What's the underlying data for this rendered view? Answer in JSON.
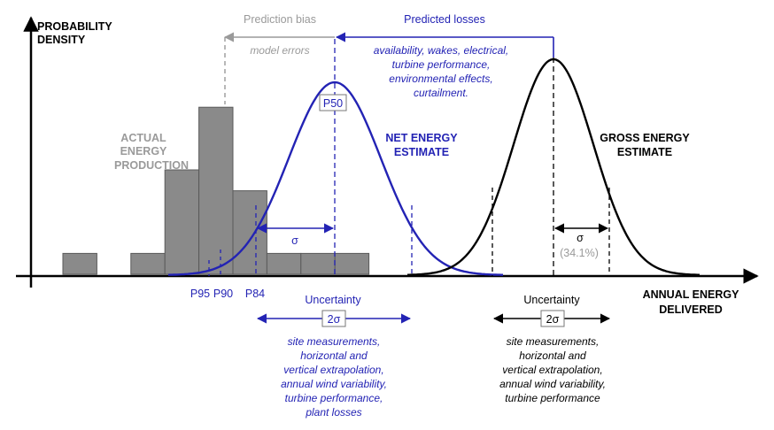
{
  "axes": {
    "y_label": [
      "PROBABILITY",
      "DENSITY"
    ],
    "x_label": [
      "ANNUAL ENERGY",
      "DELIVERED"
    ]
  },
  "histogram": {
    "label": [
      "ACTUAL",
      "ENERGY",
      "PRODUCTION"
    ],
    "bars": [
      1,
      0,
      1,
      5,
      8,
      4,
      1,
      1,
      1
    ]
  },
  "net": {
    "label": [
      "NET ENERGY",
      "ESTIMATE"
    ],
    "p50": "P50",
    "sigma": "σ",
    "p_marks": [
      "P95",
      "P90",
      "P84"
    ],
    "uncertainty_label": "Uncertainty",
    "two_sigma": "2σ",
    "uncertainty_sources": [
      "site measurements,",
      "horizontal and",
      "vertical extrapolation,",
      "annual wind variability,",
      "turbine performance,",
      "plant losses"
    ]
  },
  "gross": {
    "label": [
      "GROSS ENERGY",
      "ESTIMATE"
    ],
    "sigma": "σ",
    "sigma_pct": "(34.1%)",
    "uncertainty_label": "Uncertainty",
    "two_sigma": "2σ",
    "uncertainty_sources": [
      "site measurements,",
      "horizontal and",
      "vertical extrapolation,",
      "annual wind variability,",
      "turbine performance"
    ]
  },
  "prediction_bias": {
    "label": "Prediction bias",
    "note": "model errors"
  },
  "predicted_losses": {
    "label": "Predicted losses",
    "items": [
      "availability, wakes, electrical,",
      "turbine performance,",
      "environmental effects,",
      "curtailment."
    ]
  },
  "colors": {
    "net": "#2323b4",
    "gross": "#000000",
    "bias": "#9a9a9a",
    "bar_fill": "#8a8a8a",
    "hist_label": "#9a9a9a"
  }
}
